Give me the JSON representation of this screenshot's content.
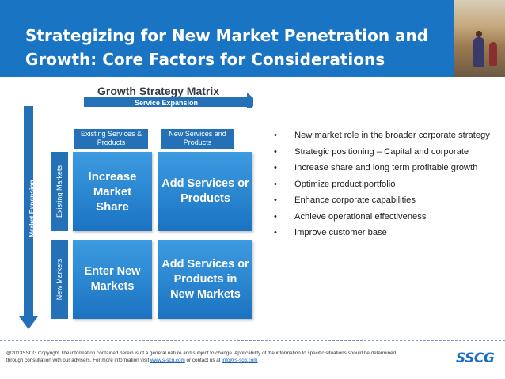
{
  "slide": {
    "title": "Strategizing for New Market Penetration and Growth: Core Factors for Considerations"
  },
  "matrix": {
    "title": "Growth Strategy Matrix",
    "horizontal_axis": "Service Expansion",
    "vertical_axis": "Market Expansion",
    "columns": [
      "Existing Services & Products",
      "New Services and Products"
    ],
    "rows": [
      "Existing Markets",
      "New Markets"
    ],
    "cells": [
      "Increase Market Share",
      "Add Services or Products",
      "Enter New Markets",
      "Add Services or Products in New Markets"
    ]
  },
  "bullets": [
    "New market role in the broader corporate strategy",
    "Strategic positioning – Capital and corporate",
    "Increase share and long term profitable growth",
    "Optimize product portfolio",
    "Enhance  corporate capabilities",
    "Achieve operational effectiveness",
    "Improve customer base"
  ],
  "footer": {
    "text_1": "@2013SSCG Copyright  The information contained herein is of a general nature and subject to change. Applicability of the information to specific situations should be determined through consultation with  our advisers.  For more information visit ",
    "link_1": "www.s-scg.com",
    "text_2": " or contact  us at ",
    "link_2": "info@s-scg.com",
    "logo": "SSCG"
  },
  "colors": {
    "banner": "#1a74c4",
    "cell": "#2d8ad6",
    "header": "#2471b8"
  }
}
